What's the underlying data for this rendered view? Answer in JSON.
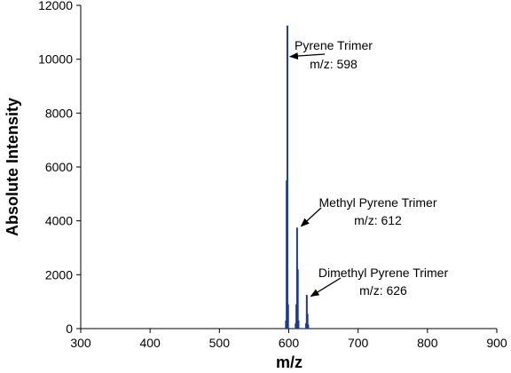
{
  "chart_data": {
    "type": "bar",
    "title": "",
    "xlabel": "m/z",
    "ylabel": "Absolute Intensity",
    "xlim": [
      300,
      900
    ],
    "ylim": [
      0,
      12000
    ],
    "xticks": [
      300,
      400,
      500,
      600,
      700,
      800,
      900
    ],
    "yticks": [
      0,
      2000,
      4000,
      6000,
      8000,
      10000,
      12000
    ],
    "grid": false,
    "bar_color": "#1f3a8a",
    "peaks": [
      {
        "x": 596,
        "y": 300
      },
      {
        "x": 597,
        "y": 5500
      },
      {
        "x": 598,
        "y": 11250
      },
      {
        "x": 599,
        "y": 900
      },
      {
        "x": 610,
        "y": 200
      },
      {
        "x": 611,
        "y": 900
      },
      {
        "x": 612,
        "y": 3750
      },
      {
        "x": 613,
        "y": 2200
      },
      {
        "x": 614,
        "y": 300
      },
      {
        "x": 625,
        "y": 200
      },
      {
        "x": 626,
        "y": 1250
      },
      {
        "x": 627,
        "y": 550
      },
      {
        "x": 628,
        "y": 150
      }
    ],
    "annotations": [
      {
        "line1": "Pyrene Trimer",
        "line2": "m/z: 598",
        "point_x": 598,
        "point_y": 10100
      },
      {
        "line1": "Methyl Pyrene Trimer",
        "line2": "m/z: 612",
        "point_x": 614,
        "point_y": 3800
      },
      {
        "line1": "Dimethyl Pyrene Trimer",
        "line2": "m/z: 626",
        "point_x": 628,
        "point_y": 1200
      }
    ]
  }
}
